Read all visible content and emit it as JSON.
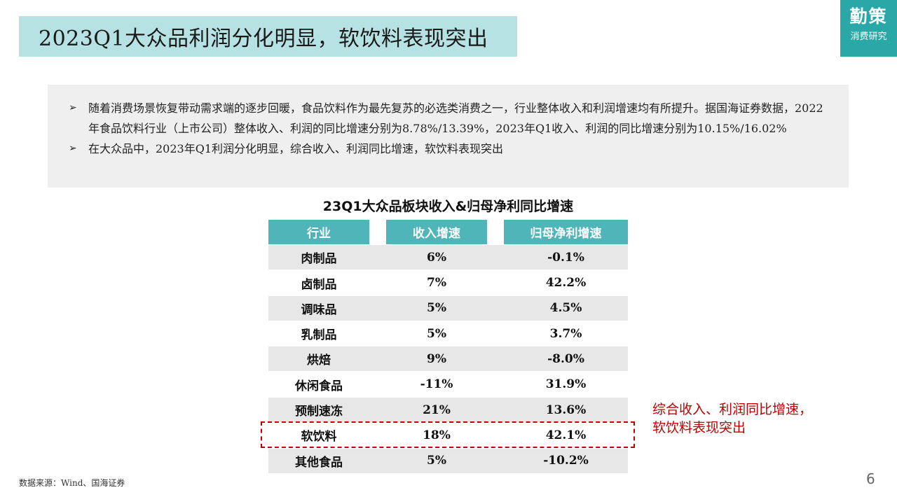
{
  "header": {
    "title": "2023Q1大众品利润分化明显，软饮料表现突出",
    "logo_main": "勤策",
    "logo_sub": "消费研究"
  },
  "summary": {
    "bullet_mark": "➢",
    "bullets": [
      "随着消费场景恢复带动需求端的逐步回暖，食品饮料作为最先复苏的必选类消费之一，行业整体收入和利润增速均有所提升。据国海证券数据，2022年食品饮料行业（上市公司）整体收入、利润的同比增速分别为8.78%/13.39%，2023年Q1收入、利润的同比增速分别为10.15%/16.02%",
      "在大众品中，2023年Q1利润分化明显，综合收入、利润同比增速，软饮料表现突出"
    ]
  },
  "table": {
    "title": "23Q1大众品板块收入&归母净利同比增速",
    "headers": [
      "行业",
      "收入增速",
      "归母净利增速"
    ],
    "rows": [
      [
        "肉制品",
        "6%",
        "-0.1%"
      ],
      [
        "卤制品",
        "7%",
        "42.2%"
      ],
      [
        "调味品",
        "5%",
        "4.5%"
      ],
      [
        "乳制品",
        "5%",
        "3.7%"
      ],
      [
        "烘焙",
        "9%",
        "-8.0%"
      ],
      [
        "休闲食品",
        "-11%",
        "31.9%"
      ],
      [
        "预制速冻",
        "21%",
        "13.6%"
      ],
      [
        "软饮料",
        "18%",
        "42.1%"
      ],
      [
        "其他食品",
        "5%",
        "-10.2%"
      ]
    ]
  },
  "callout": {
    "line1": "综合收入、利润同比增速，",
    "line2": "软饮料表现突出"
  },
  "footer": {
    "source": "数据来源：Wind、国海证券",
    "page_number": "6"
  },
  "colors": {
    "title_bg": "#b7e2e3",
    "logo_bg": "#2aa8a8",
    "table_header": "#4fb5b8",
    "row_shade": "#e7e7e7",
    "highlight": "#c00000"
  }
}
